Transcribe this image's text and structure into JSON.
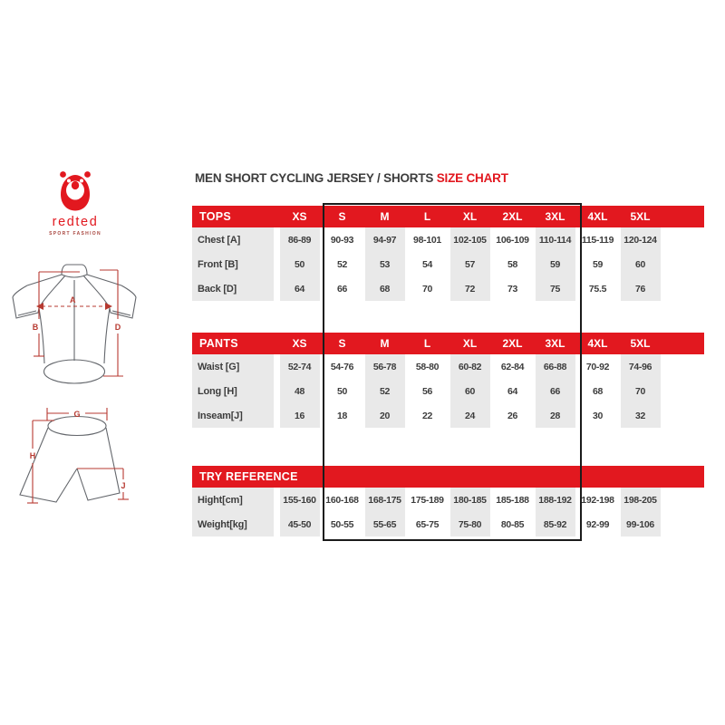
{
  "brand": {
    "name": "redted",
    "tagline": "SPORT FASHION"
  },
  "title": {
    "main": "MEN SHORT CYCLING JERSEY / SHORTS ",
    "highlight": "SIZE CHART"
  },
  "sizes": [
    "XS",
    "S",
    "M",
    "L",
    "XL",
    "2XL",
    "3XL",
    "4XL",
    "5XL"
  ],
  "tables": [
    {
      "id": "tops",
      "header": "TOPS",
      "show_sizes": true,
      "rows": [
        {
          "label": "Chest [A]",
          "values": [
            "86-89",
            "90-93",
            "94-97",
            "98-101",
            "102-105",
            "106-109",
            "110-114",
            "115-119",
            "120-124"
          ]
        },
        {
          "label": "Front [B]",
          "values": [
            "50",
            "52",
            "53",
            "54",
            "57",
            "58",
            "59",
            "59",
            "60"
          ]
        },
        {
          "label": "Back [D]",
          "values": [
            "64",
            "66",
            "68",
            "70",
            "72",
            "73",
            "75",
            "75.5",
            "76"
          ]
        }
      ]
    },
    {
      "id": "pants",
      "header": "PANTS",
      "show_sizes": true,
      "rows": [
        {
          "label": "Waist [G]",
          "values": [
            "52-74",
            "54-76",
            "56-78",
            "58-80",
            "60-82",
            "62-84",
            "66-88",
            "70-92",
            "74-96"
          ]
        },
        {
          "label": "Long [H]",
          "values": [
            "48",
            "50",
            "52",
            "56",
            "60",
            "64",
            "66",
            "68",
            "70"
          ]
        },
        {
          "label": "Inseam[J]",
          "values": [
            "16",
            "18",
            "20",
            "22",
            "24",
            "26",
            "28",
            "30",
            "32"
          ]
        }
      ]
    },
    {
      "id": "try",
      "header": "TRY REFERENCE",
      "show_sizes": false,
      "rows": [
        {
          "label": "Hight[cm]",
          "values": [
            "155-160",
            "160-168",
            "168-175",
            "175-189",
            "180-185",
            "185-188",
            "188-192",
            "192-198",
            "198-205"
          ]
        },
        {
          "label": "Weight[kg]",
          "values": [
            "45-50",
            "50-55",
            "55-65",
            "65-75",
            "75-80",
            "80-85",
            "85-92",
            "92-99",
            "99-106"
          ]
        }
      ]
    }
  ],
  "diagrams": {
    "jersey": {
      "labels": [
        "A",
        "B",
        "D"
      ]
    },
    "shorts": {
      "labels": [
        "G",
        "H",
        "J"
      ]
    }
  },
  "highlight_box": {
    "columns": [
      "S",
      "M",
      "L",
      "XL",
      "2XL",
      "3XL"
    ]
  },
  "colors": {
    "red": "#e2181f",
    "cell_gray": "#e9e9e9",
    "text_dark": "#3d3d3d",
    "measure_red": "#b73a31",
    "outline_gray": "#64676c",
    "box_border": "#1b1b1b"
  }
}
